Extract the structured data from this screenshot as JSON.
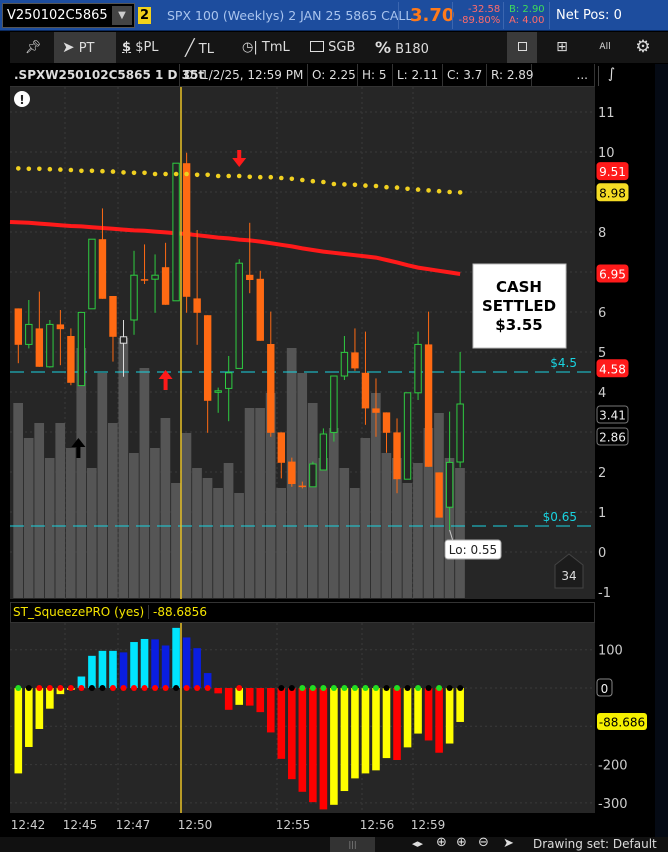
{
  "topbar": {
    "symbol": "V250102C5865",
    "link_badge": "2",
    "description": "SPX 100 (Weeklys) 2 JAN 25 5865 CALL",
    "last": "3.70",
    "net_change": "-32.58",
    "pct_change": "-89.80%",
    "bid": "B: 2.90",
    "ask": "A: 4.00",
    "net_pos": "Net Pos: 0"
  },
  "toolbar": {
    "pin": "pin-icon",
    "pt": "PT",
    "pl": "$PL",
    "tl": "TL",
    "tml": "TmL",
    "sgb": "SGB",
    "b180": "B180",
    "all": "All"
  },
  "chart_header": {
    "symbol": ".SPXW250102C5865 1 D 35t",
    "date": "D: 1/2/25, 12:59 PM",
    "open": "O: 2.25",
    "high": "H: 5",
    "low": "L: 2.11",
    "close": "C: 3.7",
    "range": "R: 2.89",
    "more": "..."
  },
  "colors": {
    "up": "#2ecc40",
    "down": "#ff6a13",
    "ma": "#ff1a1a",
    "dots": "#f0d020",
    "level_line": "#19d3e0",
    "volume": "#555555",
    "cursor_line": "#e8c227",
    "sq_cyan": "#00e5ff",
    "sq_blue": "#0a1ee0",
    "sq_red": "#ff0000",
    "sq_yellow": "#ffff00"
  },
  "chart_data": [
    {
      "type": "candlestick",
      "ylim": [
        -1,
        11.5
      ],
      "y_ticks": [
        "11",
        "10",
        "8",
        "6",
        "5",
        "4",
        "2",
        "1",
        "0",
        "-1"
      ],
      "candles": [
        {
          "o": 6.09,
          "h": 6.09,
          "l": 4.72,
          "c": 5.18
        },
        {
          "o": 5.19,
          "h": 6.3,
          "l": 5.09,
          "c": 5.69
        },
        {
          "o": 5.59,
          "h": 6.51,
          "l": 4.63,
          "c": 4.63
        },
        {
          "o": 4.63,
          "h": 5.8,
          "l": 4.61,
          "c": 5.69
        },
        {
          "o": 5.69,
          "h": 6.05,
          "l": 4.67,
          "c": 5.57
        },
        {
          "o": 5.4,
          "h": 5.59,
          "l": 4.17,
          "c": 4.23
        },
        {
          "o": 4.16,
          "h": 5.99,
          "l": 4.16,
          "c": 5.99
        },
        {
          "o": 6.08,
          "h": 7.82,
          "l": 6.08,
          "c": 7.82
        },
        {
          "o": 7.82,
          "h": 8.59,
          "l": 6.33,
          "c": 6.33
        },
        {
          "o": 6.4,
          "h": 6.4,
          "l": 4.76,
          "c": 5.38
        },
        {
          "o": 5.38,
          "h": 5.8,
          "l": 4.38,
          "c": 5.22,
          "neutral": true
        },
        {
          "o": 5.8,
          "h": 7.53,
          "l": 5.43,
          "c": 6.92
        },
        {
          "o": 6.82,
          "h": 7.69,
          "l": 6.7,
          "c": 6.8
        },
        {
          "o": 6.82,
          "h": 7.44,
          "l": 5.98,
          "c": 6.92
        },
        {
          "o": 7.12,
          "h": 7.73,
          "l": 6.18,
          "c": 6.18
        },
        {
          "o": 6.28,
          "h": 9.72,
          "l": 6.28,
          "c": 9.72
        },
        {
          "o": 9.72,
          "h": 9.98,
          "l": 5.98,
          "c": 6.38
        },
        {
          "o": 6.34,
          "h": 8.05,
          "l": 5.18,
          "c": 5.98
        },
        {
          "o": 5.92,
          "h": 5.92,
          "l": 2.98,
          "c": 3.78
        },
        {
          "o": 4.01,
          "h": 4.11,
          "l": 3.48,
          "c": 4.03
        },
        {
          "o": 4.09,
          "h": 4.9,
          "l": 3.27,
          "c": 4.48
        },
        {
          "o": 4.59,
          "h": 7.32,
          "l": 4.59,
          "c": 7.22
        },
        {
          "o": 6.93,
          "h": 8.23,
          "l": 6.47,
          "c": 6.8
        },
        {
          "o": 6.83,
          "h": 7.03,
          "l": 5.28,
          "c": 5.28
        },
        {
          "o": 5.2,
          "h": 6.01,
          "l": 2.88,
          "c": 2.98
        },
        {
          "o": 2.99,
          "h": 2.99,
          "l": 1.84,
          "c": 2.23
        },
        {
          "o": 2.26,
          "h": 2.36,
          "l": 1.63,
          "c": 1.7
        },
        {
          "o": 1.66,
          "h": 1.76,
          "l": 1.59,
          "c": 1.65
        },
        {
          "o": 1.63,
          "h": 2.26,
          "l": 1.63,
          "c": 2.2
        },
        {
          "o": 2.05,
          "h": 3.09,
          "l": 2.05,
          "c": 2.95
        },
        {
          "o": 2.99,
          "h": 4.4,
          "l": 2.76,
          "c": 4.4
        },
        {
          "o": 4.4,
          "h": 5.4,
          "l": 4.3,
          "c": 4.99
        },
        {
          "o": 4.99,
          "h": 5.59,
          "l": 4.53,
          "c": 4.59
        },
        {
          "o": 4.48,
          "h": 5.51,
          "l": 3.18,
          "c": 3.59
        },
        {
          "o": 3.59,
          "h": 4.34,
          "l": 2.88,
          "c": 3.48
        },
        {
          "o": 3.49,
          "h": 3.49,
          "l": 2.48,
          "c": 2.98
        },
        {
          "o": 2.99,
          "h": 3.34,
          "l": 1.47,
          "c": 1.82
        },
        {
          "o": 1.82,
          "h": 3.98,
          "l": 1.82,
          "c": 3.98
        },
        {
          "o": 3.98,
          "h": 5.51,
          "l": 3.8,
          "c": 5.19
        },
        {
          "o": 5.19,
          "h": 6.01,
          "l": 2.13,
          "c": 2.13
        },
        {
          "o": 1.99,
          "h": 1.99,
          "l": 0.86,
          "c": 0.86
        },
        {
          "o": 1.12,
          "h": 3.51,
          "l": 0.55,
          "c": 2.24
        },
        {
          "o": 2.25,
          "h": 5,
          "l": 2.11,
          "c": 3.7
        }
      ],
      "volume_relative": [
        39,
        32,
        35,
        28,
        35,
        30,
        50,
        26,
        45,
        35,
        52,
        29,
        46,
        30,
        36,
        23,
        33,
        26,
        24,
        22,
        27,
        21,
        38,
        38,
        41,
        22,
        50,
        45,
        39,
        28,
        34,
        26,
        22,
        32,
        41,
        29,
        28,
        23,
        27,
        34,
        37,
        28,
        26
      ],
      "moving_average": [
        8.25,
        8.23,
        8.21,
        8.19,
        8.17,
        8.15,
        8.14,
        8.12,
        8.1,
        8.08,
        8.06,
        8.04,
        8.03,
        8.01,
        7.99,
        7.97,
        7.95,
        7.92,
        7.89,
        7.86,
        7.84,
        7.81,
        7.79,
        7.76,
        7.72,
        7.68,
        7.64,
        7.59,
        7.55,
        7.51,
        7.48,
        7.45,
        7.42,
        7.39,
        7.36,
        7.3,
        7.24,
        7.17,
        7.11,
        7.07,
        7.03,
        6.99,
        6.95
      ],
      "dotted_line": [
        9.59,
        9.58,
        9.58,
        9.57,
        9.56,
        9.55,
        9.53,
        9.53,
        9.52,
        9.51,
        9.49,
        9.48,
        9.48,
        9.45,
        9.45,
        9.45,
        9.45,
        9.43,
        9.43,
        9.4,
        9.4,
        9.4,
        9.38,
        9.37,
        9.37,
        9.35,
        9.33,
        9.3,
        9.27,
        9.25,
        9.2,
        9.19,
        9.18,
        9.16,
        9.15,
        9.12,
        9.11,
        9.08,
        9.06,
        9.04,
        9.02,
        9.0,
        8.99
      ],
      "levels": [
        {
          "price": 4.5,
          "label": "$4.5"
        },
        {
          "price": 0.65,
          "label": "$0.65"
        }
      ],
      "price_bubbles": [
        {
          "value": "9.51",
          "price": 9.51,
          "style": "red"
        },
        {
          "value": "8.98",
          "price": 8.98,
          "style": "yellow"
        },
        {
          "value": "6.95",
          "price": 6.95,
          "style": "red"
        },
        {
          "value": "4.58",
          "price": 4.58,
          "style": "red"
        },
        {
          "value": "3.41",
          "price": 3.41,
          "style": "dark"
        },
        {
          "value": "2.86",
          "price": 2.86,
          "style": "dark"
        }
      ],
      "annotation": {
        "lines": [
          "CASH",
          "SETTLED",
          "$3.55"
        ]
      },
      "low_bubble": "Lo: 0.55",
      "bubble_count": "34",
      "arrows": [
        {
          "bar": 21,
          "dir": "down",
          "color": "red"
        },
        {
          "bar": 14,
          "dir": "up",
          "color": "red"
        },
        {
          "bar": 6,
          "dir": "up",
          "color": "black"
        }
      ],
      "cursor_bar": 16
    },
    {
      "type": "bar",
      "title": "ST_SqueezePRO (yes)",
      "current_value": "-88.6856",
      "current_label": "-88.686",
      "zero_label": "0",
      "ylim": [
        -320,
        170
      ],
      "y_ticks": [
        "100",
        "-200",
        "-300"
      ],
      "values": [
        -223,
        -154,
        -107,
        -54,
        -16,
        -5,
        30,
        84,
        97,
        97,
        93,
        120,
        128,
        127,
        111,
        157,
        132,
        104,
        39,
        -14,
        -57,
        -44,
        -46,
        -63,
        -116,
        -185,
        -238,
        -271,
        -298,
        -317,
        -305,
        -269,
        -236,
        -223,
        -215,
        -183,
        -188,
        -155,
        -119,
        -137,
        -169,
        -145,
        -88.686
      ],
      "bar_colors": [
        "yellow",
        "yellow",
        "yellow",
        "yellow",
        "yellow",
        "yellow",
        "cyan",
        "cyan",
        "cyan",
        "cyan",
        "blue",
        "cyan",
        "cyan",
        "blue",
        "blue",
        "cyan",
        "blue",
        "blue",
        "blue",
        "red",
        "red",
        "yellow",
        "red",
        "red",
        "red",
        "red",
        "red",
        "red",
        "red",
        "red",
        "yellow",
        "yellow",
        "yellow",
        "yellow",
        "yellow",
        "yellow",
        "red",
        "yellow",
        "yellow",
        "red",
        "red",
        "yellow",
        "yellow"
      ],
      "dot_colors": [
        "green",
        "black",
        "red",
        "red",
        "red",
        "red",
        "red",
        "black",
        "black",
        "red",
        "red",
        "red",
        "red",
        "red",
        "red",
        "black",
        "red",
        "red",
        "red",
        "none",
        "none",
        "red",
        "none",
        "none",
        "none",
        "black",
        "black",
        "green",
        "green",
        "green",
        "green",
        "green",
        "green",
        "green",
        "green",
        "black",
        "green",
        "black",
        "green",
        "black",
        "green",
        "black",
        "black"
      ],
      "x_ticks": [
        "12:42",
        "12:45",
        "12:47",
        "12:50",
        "12:55",
        "12:56",
        "12:59"
      ]
    }
  ],
  "bottom": {
    "drawing_set": "Drawing set: Default"
  }
}
